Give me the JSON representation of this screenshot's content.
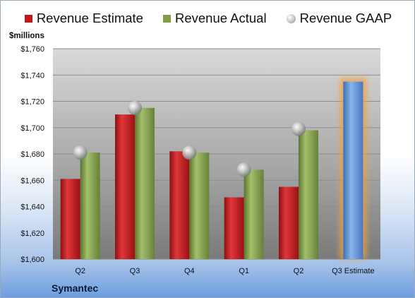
{
  "company": "Symantec",
  "unit_label": "$millions",
  "colors": {
    "estimate": "#c0171b",
    "actual": "#7f9d43",
    "gaap": "#a6a6a6",
    "future_estimate": "#5b8fd6",
    "future_glow": "#f0a040"
  },
  "legend": [
    {
      "label": "Revenue Estimate",
      "swatch": "square",
      "color": "#c0171b"
    },
    {
      "label": "Revenue Actual",
      "swatch": "square",
      "color": "#7f9d43"
    },
    {
      "label": "Revenue GAAP",
      "swatch": "sphere",
      "color": "#a6a6a6"
    }
  ],
  "chart_data": {
    "type": "bar",
    "categories": [
      "Q2",
      "Q3",
      "Q4",
      "Q1",
      "Q2",
      "Q3 Estimate"
    ],
    "series": [
      {
        "name": "Revenue Estimate",
        "values": [
          1661,
          1710,
          1682,
          1647,
          1655,
          null
        ]
      },
      {
        "name": "Revenue Actual",
        "values": [
          1681,
          1715,
          1681,
          1668,
          1698,
          null
        ]
      },
      {
        "name": "Revenue GAAP",
        "marker": "sphere",
        "values": [
          1681,
          1715,
          1681,
          1668,
          1699,
          null
        ]
      },
      {
        "name": "",
        "values": [
          null,
          null,
          null,
          null,
          null,
          1735
        ]
      }
    ],
    "ylim": [
      1600,
      1760
    ],
    "yticks": [
      1600,
      1620,
      1640,
      1660,
      1680,
      1700,
      1720,
      1740,
      1760
    ],
    "ytick_labels": [
      "$1,600",
      "$1,620",
      "$1,640",
      "$1,660",
      "$1,680",
      "$1,700",
      "$1,720",
      "$1,740",
      "$1,760"
    ],
    "grid": true,
    "legend_position": "top",
    "title": "",
    "xlabel": "",
    "ylabel": "$millions"
  }
}
